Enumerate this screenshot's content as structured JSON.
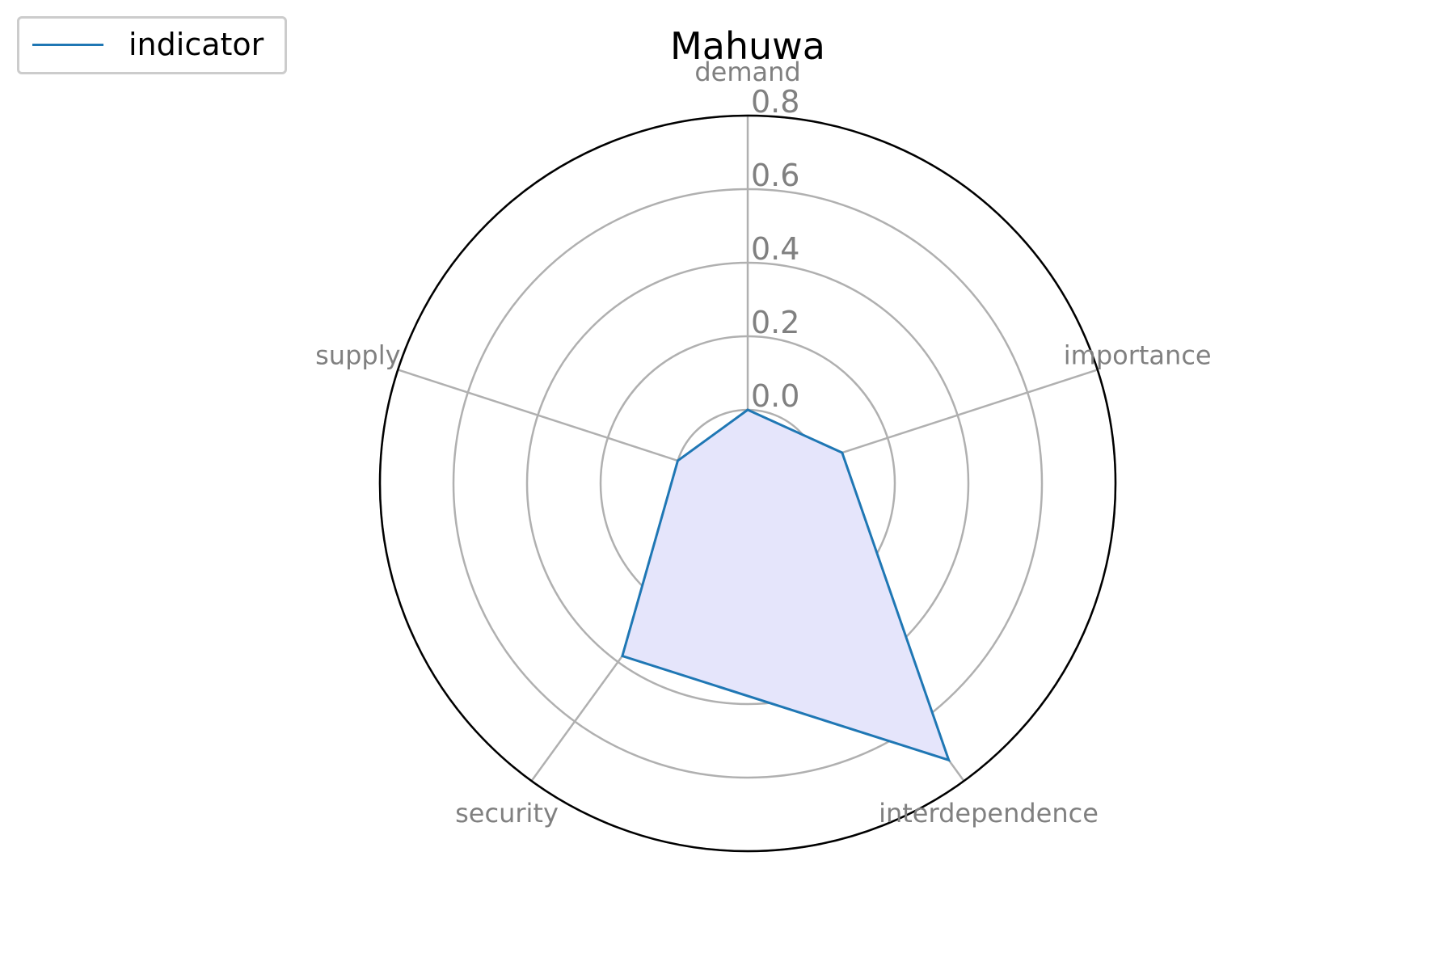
{
  "chart_data": {
    "type": "radar",
    "title": "Mahuwa",
    "axes": [
      "demand",
      "importance",
      "interdependence",
      "security",
      "supply"
    ],
    "series": [
      {
        "name": "indicator",
        "values": [
          0.0,
          0.07,
          0.73,
          0.38,
          0.0
        ]
      }
    ],
    "radial_ticks": [
      "0.0",
      "0.2",
      "0.4",
      "0.6",
      "0.8"
    ],
    "radial_tick_values": [
      0.0,
      0.2,
      0.4,
      0.6,
      0.8
    ],
    "rlim": [
      -0.2,
      0.8
    ],
    "grid": true,
    "legend_position": "top-left",
    "colors": {
      "line": "#1f77b4",
      "fill": "#e5e5fb",
      "grid": "#b0b0b0",
      "tick_label": "#808080"
    }
  }
}
